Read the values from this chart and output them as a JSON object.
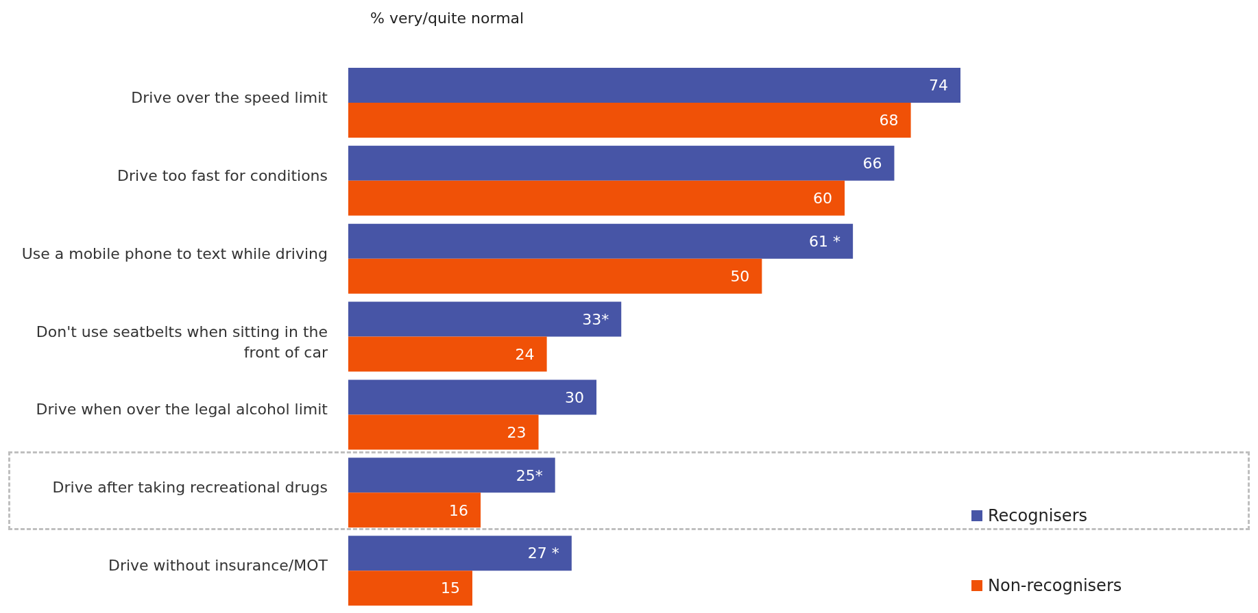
{
  "chart_data": {
    "type": "bar",
    "orientation": "horizontal",
    "title": "% very/quite normal",
    "categories": [
      "Drive over the speed limit",
      "Drive too fast for conditions",
      "Use a mobile phone to text while driving",
      "Don't use seatbelts when sitting in the front of car",
      "Drive when over the legal alcohol limit",
      "Drive after taking recreational drugs",
      "Drive without insurance/MOT"
    ],
    "series": [
      {
        "name": "Recognisers",
        "color": "#4755a6",
        "values": [
          74,
          66,
          61,
          33,
          30,
          25,
          27
        ],
        "value_labels": [
          "74",
          "66",
          "61 *",
          "33*",
          "30",
          "25*",
          "27 *"
        ]
      },
      {
        "name": "Non-recognisers",
        "color": "#f05107",
        "values": [
          68,
          60,
          50,
          24,
          23,
          16,
          15
        ],
        "value_labels": [
          "68",
          "60",
          "50",
          "24",
          "23",
          "16",
          "15"
        ]
      }
    ],
    "legend": "bottom right"
  }
}
